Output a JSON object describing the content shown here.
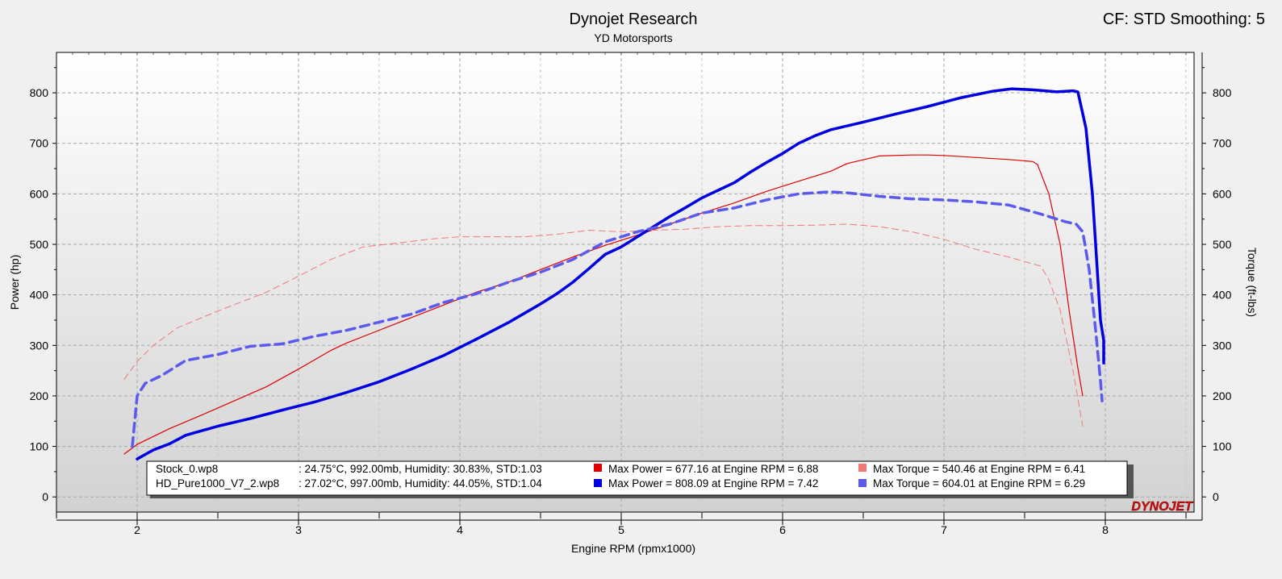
{
  "header": {
    "title": "Dynojet Research",
    "subtitle": "YD Motorsports",
    "corner": "CF: STD Smoothing: 5"
  },
  "logo": "DYNOJET",
  "chart_data": {
    "type": "line",
    "title": "Dynojet Research",
    "subtitle": "YD Motorsports",
    "xlabel": "Engine RPM (rpmx1000)",
    "ylabel": "Power (hp)",
    "y2label": "Torque (ft-lbs)",
    "xlim": [
      1.5,
      8.55
    ],
    "ylim": [
      -30,
      880
    ],
    "xticks": [
      2,
      3,
      4,
      5,
      6,
      7,
      8
    ],
    "yticks": [
      0,
      100,
      200,
      300,
      400,
      500,
      600,
      700,
      800
    ],
    "grid": true,
    "series": [
      {
        "name": "Stock_0.wp8",
        "measure": "Power",
        "color": "#e00000",
        "style": "solid",
        "points": [
          [
            1.92,
            85
          ],
          [
            2.0,
            104
          ],
          [
            2.2,
            135
          ],
          [
            2.4,
            162
          ],
          [
            2.6,
            190
          ],
          [
            2.8,
            218
          ],
          [
            3.0,
            253
          ],
          [
            3.2,
            290
          ],
          [
            3.3,
            305
          ],
          [
            3.5,
            330
          ],
          [
            3.7,
            355
          ],
          [
            3.9,
            380
          ],
          [
            4.1,
            405
          ],
          [
            4.3,
            425
          ],
          [
            4.5,
            450
          ],
          [
            4.7,
            475
          ],
          [
            4.9,
            498
          ],
          [
            5.1,
            518
          ],
          [
            5.3,
            540
          ],
          [
            5.5,
            562
          ],
          [
            5.7,
            582
          ],
          [
            5.9,
            605
          ],
          [
            6.1,
            625
          ],
          [
            6.3,
            645
          ],
          [
            6.4,
            660
          ],
          [
            6.6,
            675
          ],
          [
            6.8,
            677
          ],
          [
            6.9,
            677
          ],
          [
            7.0,
            676
          ],
          [
            7.2,
            672
          ],
          [
            7.4,
            668
          ],
          [
            7.55,
            664
          ],
          [
            7.58,
            658
          ],
          [
            7.65,
            600
          ],
          [
            7.72,
            500
          ],
          [
            7.78,
            360
          ],
          [
            7.83,
            255
          ],
          [
            7.86,
            200
          ]
        ]
      },
      {
        "name": "Stock_0.wp8",
        "measure": "Torque",
        "color": "#f07878",
        "style": "dashed",
        "points": [
          [
            1.92,
            233
          ],
          [
            2.0,
            268
          ],
          [
            2.1,
            300
          ],
          [
            2.25,
            335
          ],
          [
            2.5,
            368
          ],
          [
            2.8,
            405
          ],
          [
            3.0,
            437
          ],
          [
            3.2,
            470
          ],
          [
            3.4,
            495
          ],
          [
            3.6,
            502
          ],
          [
            3.8,
            510
          ],
          [
            4.0,
            515
          ],
          [
            4.2,
            515
          ],
          [
            4.4,
            515
          ],
          [
            4.6,
            520
          ],
          [
            4.8,
            528
          ],
          [
            5.0,
            525
          ],
          [
            5.2,
            528
          ],
          [
            5.4,
            530
          ],
          [
            5.6,
            535
          ],
          [
            5.8,
            537
          ],
          [
            6.0,
            537
          ],
          [
            6.2,
            538
          ],
          [
            6.4,
            540
          ],
          [
            6.6,
            535
          ],
          [
            6.8,
            525
          ],
          [
            7.0,
            510
          ],
          [
            7.2,
            490
          ],
          [
            7.4,
            475
          ],
          [
            7.6,
            457
          ],
          [
            7.65,
            430
          ],
          [
            7.72,
            370
          ],
          [
            7.8,
            250
          ],
          [
            7.86,
            140
          ]
        ]
      },
      {
        "name": "HD_Pure1000_V7_2.wp8",
        "measure": "Power",
        "color": "#0000e0",
        "style": "solid-bold",
        "points": [
          [
            2.0,
            75
          ],
          [
            2.1,
            93
          ],
          [
            2.2,
            105
          ],
          [
            2.3,
            122
          ],
          [
            2.5,
            140
          ],
          [
            2.7,
            155
          ],
          [
            2.9,
            172
          ],
          [
            3.1,
            188
          ],
          [
            3.3,
            207
          ],
          [
            3.5,
            228
          ],
          [
            3.7,
            253
          ],
          [
            3.9,
            280
          ],
          [
            4.1,
            312
          ],
          [
            4.3,
            345
          ],
          [
            4.5,
            382
          ],
          [
            4.6,
            402
          ],
          [
            4.7,
            425
          ],
          [
            4.8,
            452
          ],
          [
            4.9,
            480
          ],
          [
            5.0,
            495
          ],
          [
            5.1,
            515
          ],
          [
            5.2,
            535
          ],
          [
            5.3,
            555
          ],
          [
            5.4,
            573
          ],
          [
            5.5,
            592
          ],
          [
            5.6,
            607
          ],
          [
            5.7,
            622
          ],
          [
            5.8,
            643
          ],
          [
            5.9,
            662
          ],
          [
            6.0,
            680
          ],
          [
            6.1,
            700
          ],
          [
            6.2,
            715
          ],
          [
            6.3,
            727
          ],
          [
            6.5,
            742
          ],
          [
            6.7,
            758
          ],
          [
            6.9,
            773
          ],
          [
            7.1,
            790
          ],
          [
            7.3,
            803
          ],
          [
            7.42,
            808
          ],
          [
            7.55,
            806
          ],
          [
            7.7,
            802
          ],
          [
            7.8,
            804
          ],
          [
            7.83,
            802
          ],
          [
            7.88,
            730
          ],
          [
            7.92,
            600
          ],
          [
            7.95,
            450
          ],
          [
            7.97,
            350
          ],
          [
            7.99,
            310
          ],
          [
            7.99,
            265
          ]
        ]
      },
      {
        "name": "HD_Pure1000_V7_2.wp8",
        "measure": "Torque",
        "color": "#5a5aec",
        "style": "dashed-bold",
        "points": [
          [
            1.97,
            100
          ],
          [
            2.0,
            200
          ],
          [
            2.05,
            225
          ],
          [
            2.15,
            240
          ],
          [
            2.3,
            270
          ],
          [
            2.5,
            282
          ],
          [
            2.7,
            298
          ],
          [
            2.9,
            303
          ],
          [
            3.1,
            318
          ],
          [
            3.3,
            330
          ],
          [
            3.5,
            346
          ],
          [
            3.7,
            362
          ],
          [
            3.9,
            385
          ],
          [
            4.1,
            402
          ],
          [
            4.3,
            425
          ],
          [
            4.5,
            445
          ],
          [
            4.7,
            470
          ],
          [
            4.9,
            505
          ],
          [
            5.1,
            525
          ],
          [
            5.3,
            540
          ],
          [
            5.5,
            562
          ],
          [
            5.7,
            572
          ],
          [
            5.9,
            588
          ],
          [
            6.1,
            600
          ],
          [
            6.29,
            604
          ],
          [
            6.4,
            602
          ],
          [
            6.6,
            595
          ],
          [
            6.8,
            590
          ],
          [
            7.0,
            588
          ],
          [
            7.2,
            584
          ],
          [
            7.4,
            578
          ],
          [
            7.6,
            560
          ],
          [
            7.75,
            545
          ],
          [
            7.82,
            540
          ],
          [
            7.86,
            525
          ],
          [
            7.9,
            450
          ],
          [
            7.94,
            330
          ],
          [
            7.97,
            230
          ],
          [
            7.98,
            190
          ]
        ]
      }
    ],
    "legend": {
      "placement": "bottom-center",
      "rows": [
        {
          "file": "Stock_0.wp8",
          "conditions": ": 24.75°C, 992.00mb, Humidity: 30.83%, STD:1.03",
          "power_color": "#e00000",
          "power_text": "Max Power = 677.16 at Engine RPM = 6.88",
          "torque_color": "#f07878",
          "torque_text": "Max Torque = 540.46 at Engine RPM = 6.41"
        },
        {
          "file": "HD_Pure1000_V7_2.wp8",
          "conditions": ": 27.02°C, 997.00mb, Humidity: 44.05%, STD:1.04",
          "power_color": "#0000e0",
          "power_text": "Max Power = 808.09 at Engine RPM = 7.42",
          "torque_color": "#5a5aec",
          "torque_text": "Max Torque = 604.01 at Engine RPM = 6.29"
        }
      ]
    }
  }
}
